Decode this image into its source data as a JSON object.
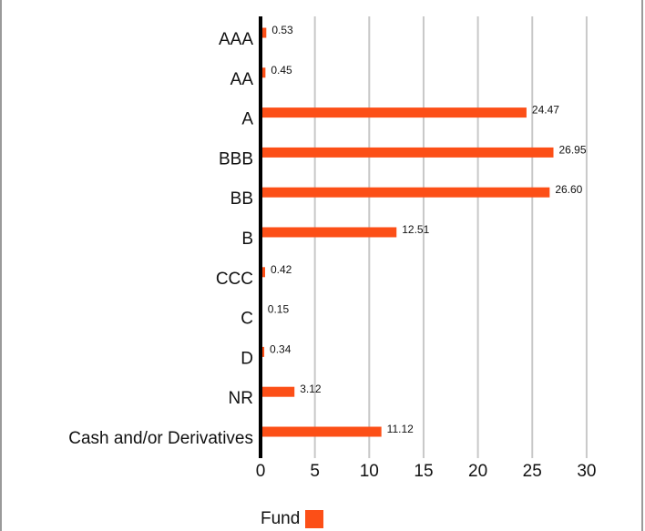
{
  "chart_data": {
    "type": "bar",
    "orientation": "horizontal",
    "categories": [
      "AAA",
      "AA",
      "A",
      "BBB",
      "BB",
      "B",
      "CCC",
      "C",
      "D",
      "NR",
      "Cash and/or Derivatives"
    ],
    "series": [
      {
        "name": "Fund",
        "values": [
          0.53,
          0.45,
          24.47,
          26.95,
          26.6,
          12.51,
          0.42,
          0.15,
          0.34,
          3.12,
          11.12
        ],
        "labels": [
          "0.53",
          "0.45",
          "24.47",
          "26.95",
          "26.60",
          "12.51",
          "0.42",
          "0.15",
          "0.34",
          "3.12",
          "11.12"
        ],
        "color": "#fc4f17"
      }
    ],
    "xlim": [
      0,
      30
    ],
    "xticks": [
      "0",
      "5",
      "10",
      "15",
      "20",
      "25",
      "30"
    ],
    "grid": true,
    "legend": "bottom"
  },
  "colors": {
    "bar": "#fc4f17",
    "grid": "#c8c8c8",
    "axis": "#000000"
  },
  "legend": {
    "label": "Fund"
  }
}
